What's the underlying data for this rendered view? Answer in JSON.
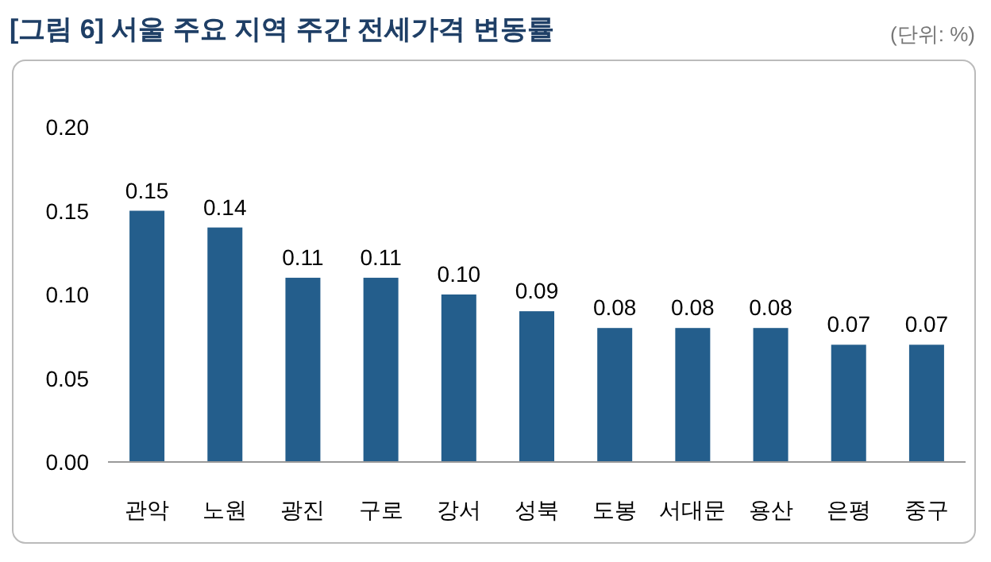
{
  "chart_data": {
    "type": "bar",
    "title": "[그림 6] 서울 주요 지역 주간 전세가격 변동률",
    "annotations": [
      "(단위: %)"
    ],
    "categories": [
      "관악",
      "노원",
      "광진",
      "구로",
      "강서",
      "성북",
      "도봉",
      "서대문",
      "용산",
      "은평",
      "중구"
    ],
    "values": [
      0.15,
      0.14,
      0.11,
      0.11,
      0.1,
      0.09,
      0.08,
      0.08,
      0.08,
      0.07,
      0.07
    ],
    "color": "#245e8c",
    "ylim": [
      0,
      0.2
    ],
    "yticks": [
      {
        "value": 0,
        "label": "0.00"
      },
      {
        "value": 0.05,
        "label": "0.05"
      },
      {
        "value": 0.1,
        "label": "0.10"
      },
      {
        "value": 0.15,
        "label": "0.15"
      },
      {
        "value": 0.2,
        "label": "0.20"
      }
    ],
    "value_labels": [
      "0.15",
      "0.14",
      "0.11",
      "0.11",
      "0.10",
      "0.09",
      "0.08",
      "0.08",
      "0.08",
      "0.07",
      "0.07"
    ],
    "grid": false
  }
}
